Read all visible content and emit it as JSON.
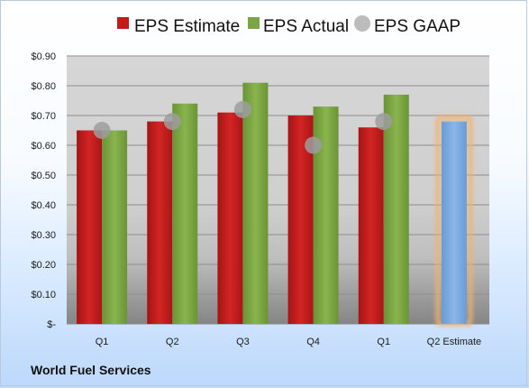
{
  "colors": {
    "estimate": "#c11b1b",
    "actual": "#7ba542",
    "gaap": "#b0b0b0",
    "q2_estimate_fill": "#77a6dd",
    "q2_estimate_glow": "#f4b26b"
  },
  "legend": {
    "estimate": "EPS Estimate",
    "actual": "EPS Actual",
    "gaap": "EPS GAAP"
  },
  "footer": {
    "company": "World Fuel Services"
  },
  "chart_data": {
    "type": "bar",
    "categories": [
      "Q1",
      "Q2",
      "Q3",
      "Q4",
      "Q1",
      "Q2 Estimate"
    ],
    "series": [
      {
        "name": "EPS Estimate",
        "values": [
          0.65,
          0.68,
          0.71,
          0.7,
          0.66,
          null
        ]
      },
      {
        "name": "EPS Actual",
        "values": [
          0.65,
          0.74,
          0.81,
          0.73,
          0.77,
          null
        ]
      },
      {
        "name": "EPS GAAP",
        "values": [
          0.65,
          0.68,
          0.72,
          0.6,
          0.68,
          null
        ]
      }
    ],
    "q2_estimate": 0.68,
    "ylim": [
      0,
      0.9
    ],
    "yticks": [
      0,
      0.1,
      0.2,
      0.3,
      0.4,
      0.5,
      0.6,
      0.7,
      0.8,
      0.9
    ],
    "ytick_labels": [
      "$-",
      "$0.10",
      "$0.20",
      "$0.30",
      "$0.40",
      "$0.50",
      "$0.60",
      "$0.70",
      "$0.80",
      "$0.90"
    ],
    "grid": true,
    "legend_position": "top"
  }
}
